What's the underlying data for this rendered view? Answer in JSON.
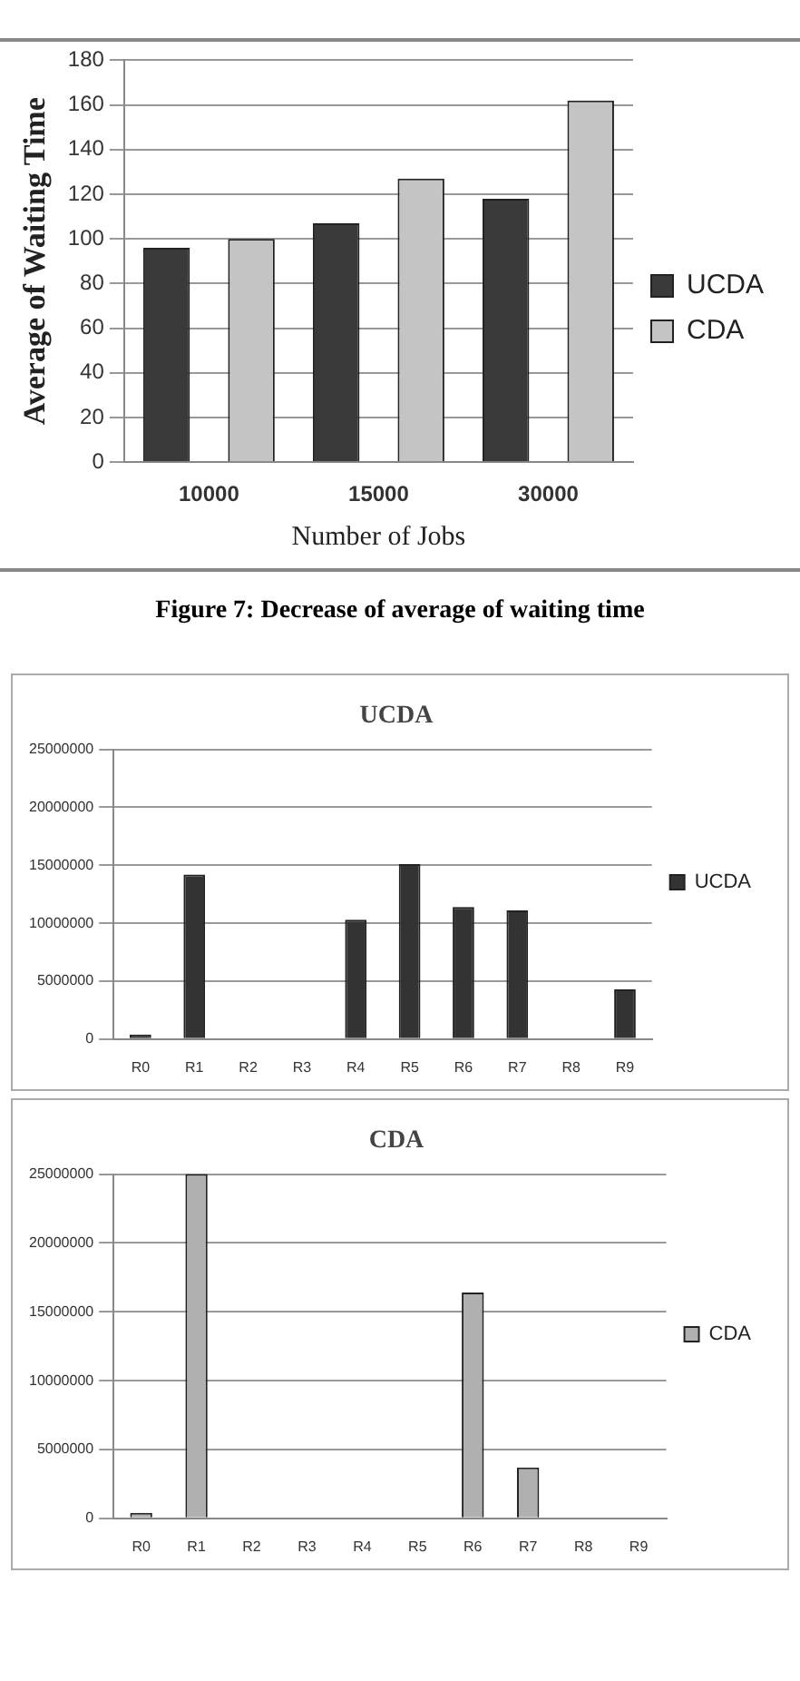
{
  "chart_data": [
    {
      "type": "bar",
      "xlabel": "Number of Jobs",
      "ylabel": "Average of Waiting Time",
      "categories": [
        "10000",
        "15000",
        "30000"
      ],
      "series": [
        {
          "name": "UCDA",
          "color": "#3a3a3a",
          "values": [
            96,
            107,
            118
          ]
        },
        {
          "name": "CDA",
          "color": "#c4c4c4",
          "values": [
            100,
            127,
            162
          ]
        }
      ],
      "ylim": [
        0,
        180
      ],
      "yticks": [
        0,
        20,
        40,
        60,
        80,
        100,
        120,
        140,
        160,
        180
      ],
      "grid": "y",
      "legend": "right",
      "annotations": [
        "Figure 7: Decrease of average of waiting time"
      ]
    },
    {
      "type": "bar",
      "title": "UCDA",
      "categories": [
        "R0",
        "R1",
        "R2",
        "R3",
        "R4",
        "R5",
        "R6",
        "R7",
        "R8",
        "R9"
      ],
      "series": [
        {
          "name": "UCDA",
          "color": "#333333",
          "values": [
            400000,
            14200000,
            0,
            0,
            10300000,
            15100000,
            11400000,
            11100000,
            0,
            4300000
          ]
        }
      ],
      "ylim": [
        0,
        25000000
      ],
      "yticks": [
        0,
        5000000,
        10000000,
        15000000,
        20000000,
        25000000
      ],
      "grid": "y",
      "legend": "right"
    },
    {
      "type": "bar",
      "title": "CDA",
      "categories": [
        "R0",
        "R1",
        "R2",
        "R3",
        "R4",
        "R5",
        "R6",
        "R7",
        "R8",
        "R9"
      ],
      "series": [
        {
          "name": "CDA",
          "color": "#b0b0b0",
          "values": [
            400000,
            25000000,
            0,
            0,
            0,
            0,
            16400000,
            3700000,
            0,
            0
          ]
        }
      ],
      "ylim": [
        0,
        25000000
      ],
      "yticks": [
        0,
        5000000,
        10000000,
        15000000,
        20000000,
        25000000
      ],
      "grid": "y",
      "legend": "right"
    }
  ]
}
